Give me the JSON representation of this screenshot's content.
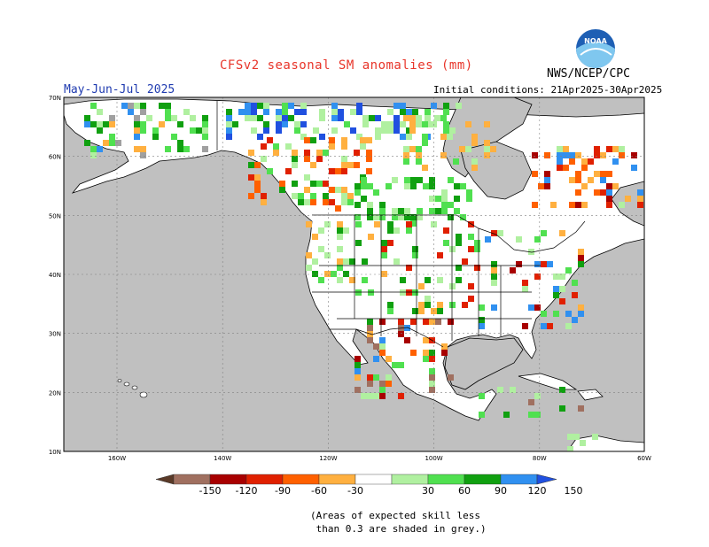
{
  "header": {
    "title": "CFSv2 seasonal SM anomalies (mm)",
    "season": "May-Jun-Jul 2025",
    "agency": "NWS/NCEP/CPC",
    "initial_conditions": "Initial conditions: 21Apr2025-30Apr2025",
    "logo_text": "NOAA"
  },
  "map": {
    "lat_labels": [
      "70N",
      "60N",
      "50N",
      "40N",
      "30N",
      "20N",
      "10N"
    ],
    "lon_labels": [
      "160W",
      "140W",
      "120W",
      "100W",
      "80W",
      "60W"
    ],
    "colors": {
      "ocean": "#c0c0c0",
      "land": "#ffffff",
      "border": "#000000"
    }
  },
  "colorbar": {
    "labels": [
      "-150",
      "-120",
      "-90",
      "-60",
      "-30",
      "30",
      "60",
      "90",
      "120",
      "150"
    ],
    "colors": [
      "#5a3a28",
      "#a07060",
      "#a80000",
      "#e02000",
      "#ff6000",
      "#ffb040",
      "#ffffff",
      "#b0f0a0",
      "#50e050",
      "#10a010",
      "#3090f0",
      "#2050e0"
    ]
  },
  "footnote": {
    "line1": "(Areas of expected skill less",
    "line2": " than 0.3 are shaded in grey.)"
  }
}
